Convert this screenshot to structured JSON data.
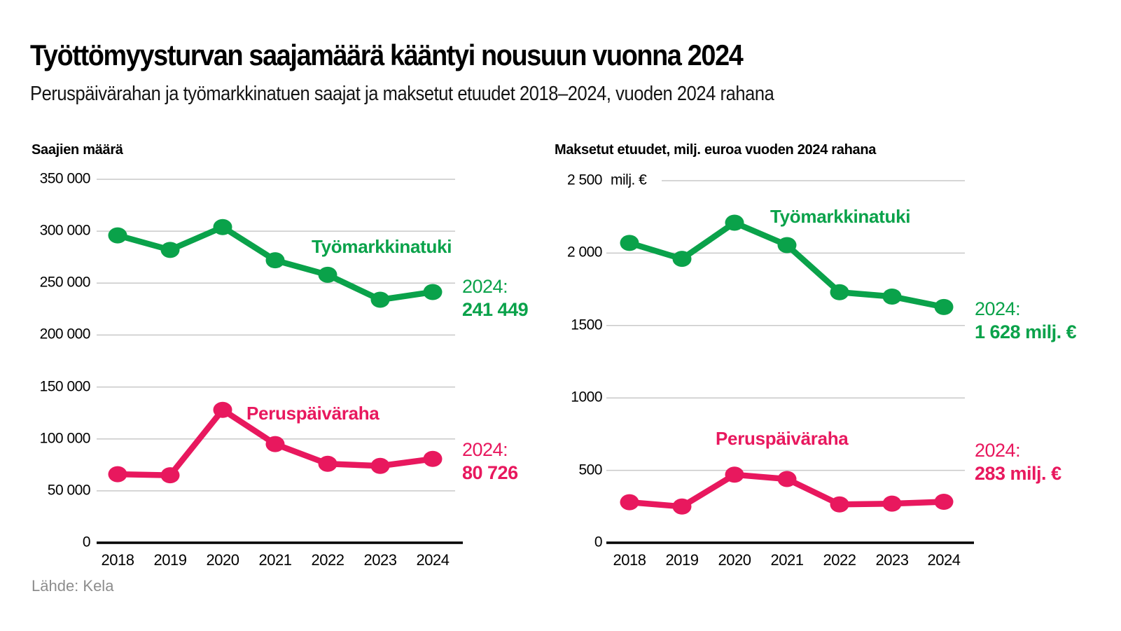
{
  "header": {
    "title": "Työttömyysturvan saajamäärä kääntyi nousuun vuonna 2024",
    "subtitle": "Peruspäivärahan ja työmarkkinatuen saajat ja maksetut etuudet 2018–2024, vuoden 2024 rahana"
  },
  "footer": {
    "source": "Lähde: Kela"
  },
  "colors": {
    "green": "#0aa24a",
    "pink": "#e8185e",
    "grid": "#c9c9c9",
    "axis": "#000000",
    "text": "#000000",
    "muted": "#8d8d8d"
  },
  "chart_data": [
    {
      "type": "line",
      "title": "Saajien määrä",
      "x_labels": [
        "2018",
        "2019",
        "2020",
        "2021",
        "2022",
        "2023",
        "2024"
      ],
      "ylim": [
        0,
        350000
      ],
      "grid": true,
      "legend_position": "inline-labels",
      "yticks": [
        {
          "value": 350000,
          "label": "350 000"
        },
        {
          "value": 300000,
          "label": "300 000"
        },
        {
          "value": 250000,
          "label": "250 000"
        },
        {
          "value": 200000,
          "label": "200 000"
        },
        {
          "value": 150000,
          "label": "150 000"
        },
        {
          "value": 100000,
          "label": "100 000"
        },
        {
          "value": 50000,
          "label": "50 000"
        },
        {
          "value": 0,
          "label": "0"
        }
      ],
      "series": [
        {
          "name": "Työmarkkinatuki",
          "color": "green",
          "values": [
            296000,
            282000,
            304000,
            272000,
            258000,
            234000,
            241449
          ],
          "annotation": [
            "2024:",
            "241 449"
          ]
        },
        {
          "name": "Peruspäiväraha",
          "color": "pink",
          "values": [
            66000,
            65000,
            128000,
            95000,
            76000,
            74000,
            80726
          ],
          "annotation": [
            "2024:",
            "80 726"
          ]
        }
      ]
    },
    {
      "type": "line",
      "title": "Maksetut etuudet, milj. euroa vuoden 2024 rahana",
      "x_labels": [
        "2018",
        "2019",
        "2020",
        "2021",
        "2022",
        "2023",
        "2024"
      ],
      "ylim": [
        0,
        2500
      ],
      "grid": true,
      "legend_position": "inline-labels",
      "yticks": [
        {
          "value": 2500,
          "label": "2 500",
          "suffix": "milj. €"
        },
        {
          "value": 2000,
          "label": "2 000"
        },
        {
          "value": 1500,
          "label": "1500"
        },
        {
          "value": 1000,
          "label": "1000"
        },
        {
          "value": 500,
          "label": "500"
        },
        {
          "value": 0,
          "label": "0"
        }
      ],
      "series": [
        {
          "name": "Työmarkkinatuki",
          "color": "green",
          "values": [
            2070,
            1960,
            2210,
            2055,
            1730,
            1700,
            1628
          ],
          "annotation": [
            "2024:",
            "1 628 milj. €"
          ]
        },
        {
          "name": "Peruspäiväraha",
          "color": "pink",
          "values": [
            280,
            250,
            470,
            440,
            265,
            270,
            283
          ],
          "annotation": [
            "2024:",
            "283 milj. €"
          ]
        }
      ]
    }
  ]
}
